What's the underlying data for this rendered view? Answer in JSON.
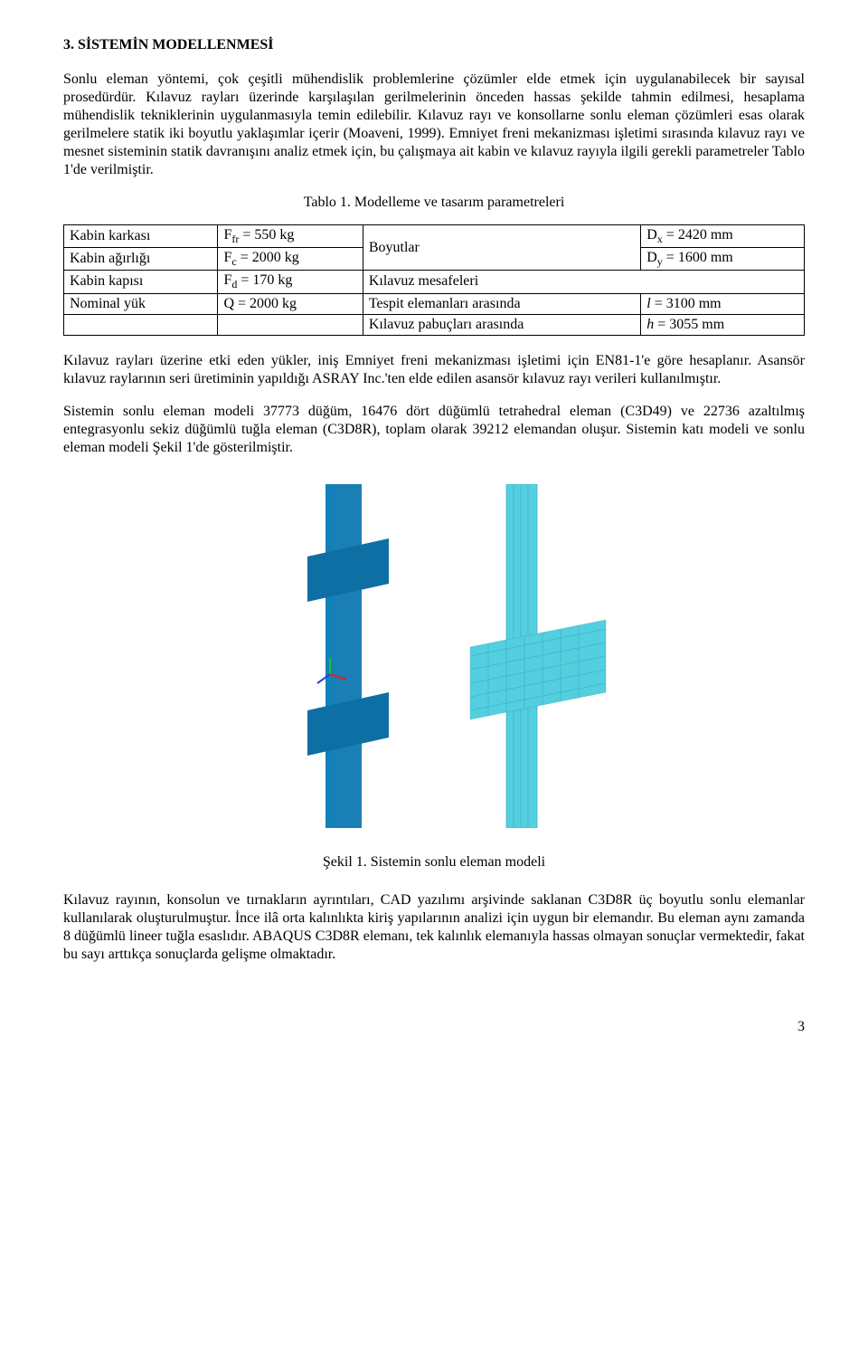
{
  "section_title": "3. SİSTEMİN MODELLENMESİ",
  "para1": "Sonlu eleman yöntemi, çok çeşitli mühendislik problemlerine çözümler elde etmek için uygulanabilecek bir sayısal prosedürdür. Kılavuz rayları üzerinde karşılaşılan gerilmelerinin önceden hassas şekilde tahmin edilmesi, hesaplama mühendislik tekniklerinin uygulanmasıyla temin edilebilir. Kılavuz rayı ve konsollarne sonlu eleman çözümleri esas olarak gerilmelere statik iki boyutlu yaklaşımlar içerir (Moaveni, 1999). Emniyet freni mekanizması işletimi sırasında kılavuz rayı ve mesnet sisteminin statik davranışını analiz etmek için, bu çalışmaya ait kabin ve kılavuz rayıyla ilgili gerekli parametreler Tablo 1'de verilmiştir.",
  "table1": {
    "caption": "Tablo 1. Modelleme ve tasarım parametreleri",
    "rows": [
      {
        "c1": "Kabin karkası",
        "c2_sym": "F",
        "c2_sub": "fr",
        "c2_rest": " = 550 kg",
        "c3": "Boyutlar",
        "c4_sym": "D",
        "c4_sub": "x",
        "c4_rest": " = 2420 mm"
      },
      {
        "c1": "Kabin ağırlığı",
        "c2_sym": "F",
        "c2_sub": "c",
        "c2_rest": " = 2000 kg",
        "c3": "",
        "c4_sym": "D",
        "c4_sub": "y",
        "c4_rest": " = 1600 mm"
      },
      {
        "c1": "Kabin kapısı",
        "c2_sym": "F",
        "c2_sub": "d",
        "c2_rest": " = 170 kg",
        "c3": "Kılavuz mesafeleri",
        "c4_sym": "",
        "c4_sub": "",
        "c4_rest": ""
      },
      {
        "c1": "Nominal yük",
        "c2_sym": "Q",
        "c2_sub": "",
        "c2_rest": " = 2000 kg",
        "c3": "Tespit elemanları arasında",
        "c4_sym": "l",
        "c4_sub": "",
        "c4_rest": " = 3100 mm",
        "c4_italic": true
      },
      {
        "c1": "",
        "c2_sym": "",
        "c2_sub": "",
        "c2_rest": "",
        "c3": "Kılavuz pabuçları arasında",
        "c4_sym": "h",
        "c4_sub": "",
        "c4_rest": " = 3055 mm",
        "c4_italic": true
      }
    ]
  },
  "para2": "Kılavuz rayları üzerine etki eden yükler, iniş Emniyet freni mekanizması işletimi için EN81-1'e göre hesaplanır. Asansör kılavuz raylarının seri üretiminin yapıldığı ASRAY Inc.'ten elde edilen asansör kılavuz rayı verileri kullanılmıştır.",
  "para3": "Sistemin sonlu eleman modeli 37773 düğüm, 16476 dört düğümlü tetrahedral eleman (C3D49) ve 22736 azaltılmış entegrasyonlu sekiz düğümlü tuğla eleman (C3D8R), toplam olarak 39212 elemandan oluşur. Sistemin katı modeli ve sonlu eleman modeli Şekil 1'de gösterilmiştir.",
  "figure1_caption": "Şekil 1. Sistemin sonlu eleman modeli",
  "para4": "Kılavuz rayının, konsolun ve tırnakların ayrıntıları, CAD yazılımı arşivinde saklanan C3D8R üç boyutlu sonlu elemanlar kullanılarak oluşturulmuştur. İnce ilâ orta kalınlıkta kiriş yapılarının analizi için uygun bir elemandır. Bu eleman aynı zamanda 8 düğümlü lineer tuğla esaslıdır. ABAQUS C3D8R elemanı, tek kalınlık elemanıyla hassas olmayan sonuçlar vermektedir, fakat bu sayı arttıkça sonuçlarda gelişme olmaktadır.",
  "pagenum": "3",
  "figure1": {
    "colors": {
      "rail_solid": "#1a7fb5",
      "rail_solid2": "#0e6fa5",
      "mesh": "#54cfe0",
      "mesh_stroke": "#2a9fb0",
      "bg": "#ffffff"
    }
  }
}
